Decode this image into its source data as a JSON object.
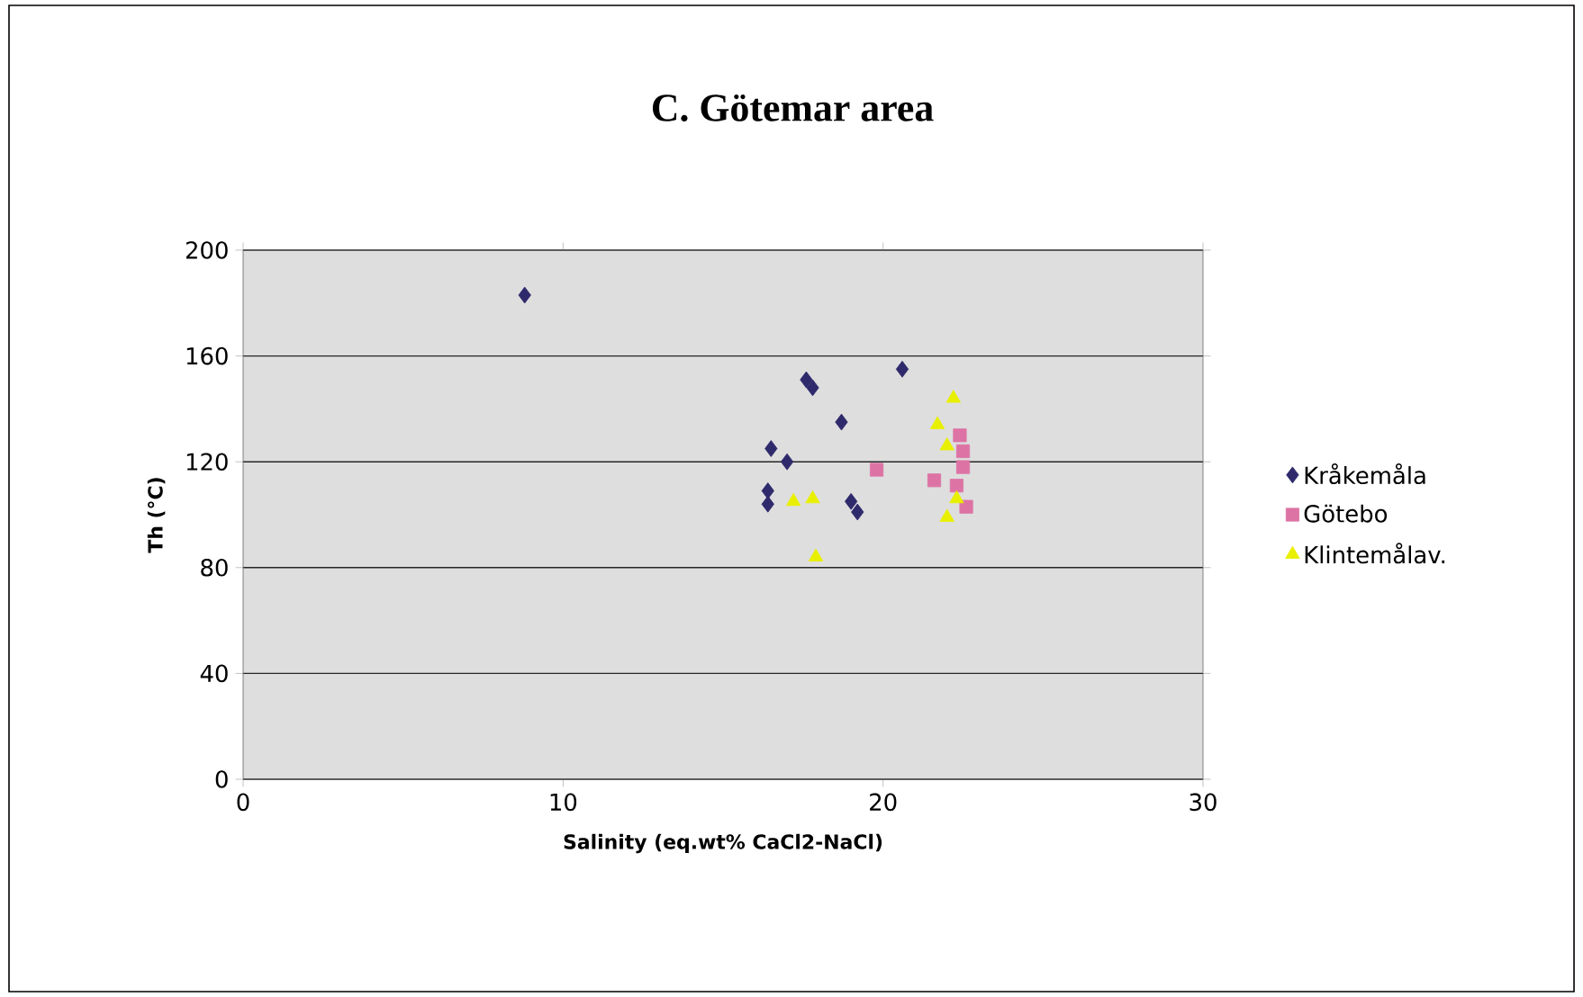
{
  "chart_data": {
    "type": "scatter",
    "title": "C. Götemar area",
    "xlabel": "Salinity (eq.wt% CaCl2-NaCl)",
    "ylabel": "Th (°C)",
    "xlim": [
      0,
      30
    ],
    "xticks": [
      0,
      10,
      20,
      30
    ],
    "ylim": [
      0,
      200
    ],
    "yticks": [
      0,
      40,
      80,
      120,
      160,
      200
    ],
    "grid": "y",
    "legend": "right",
    "series": [
      {
        "name": "Kråkemåla",
        "color": "#2e2a6b",
        "marker": "diamond",
        "x": [
          8.8,
          17.6,
          17.8,
          20.6,
          18.7,
          16.5,
          17.0,
          16.4,
          16.4,
          19.0,
          19.2
        ],
        "values": [
          183,
          151,
          148,
          155,
          135,
          125,
          120,
          109,
          104,
          105,
          101
        ]
      },
      {
        "name": "Götebo",
        "color": "#dd73a5",
        "marker": "square",
        "x": [
          19.8,
          21.6,
          22.4,
          22.5,
          22.5,
          22.6,
          22.3
        ],
        "values": [
          117,
          113,
          130,
          124,
          118,
          103,
          111
        ]
      },
      {
        "name": "Klintemålav.",
        "color": "#e8f000",
        "marker": "triangle",
        "x": [
          22.2,
          21.7,
          22.0,
          22.3,
          22.0,
          17.2,
          17.8,
          17.9
        ],
        "values": [
          144,
          134,
          126,
          106,
          99,
          105,
          106,
          84
        ]
      }
    ]
  }
}
